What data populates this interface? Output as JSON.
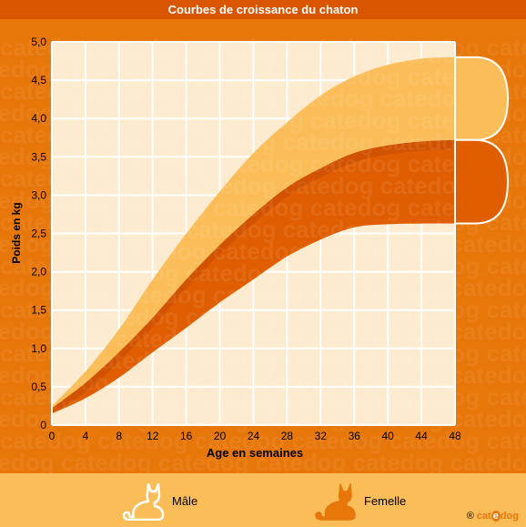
{
  "title": "Courbes de croissance du chaton",
  "legend": {
    "male": "Mâle",
    "female": "Femelle",
    "male_color": "#fbbd58",
    "female_color": "#e8770a",
    "icon": "cat-silhouette-icon"
  },
  "brand": {
    "prefix": "®",
    "part1": "cat",
    "part2": "e",
    "part3": "dog"
  },
  "watermark": "catedog",
  "colors": {
    "background": "#e8770a",
    "plot": "#fdebcf",
    "grid": "#ffffff",
    "male_band": "#fbbd58",
    "female_band": "#e05e00",
    "female_shadow": "#c44800"
  },
  "chart_data": {
    "type": "area",
    "title": "Courbes de croissance du chaton",
    "xlabel": "Age en semaines",
    "ylabel": "Poids en kg",
    "xlim": [
      0,
      48
    ],
    "ylim": [
      0,
      5
    ],
    "grid": true,
    "xticks": [
      0,
      4,
      8,
      12,
      16,
      20,
      24,
      28,
      32,
      36,
      40,
      44,
      48
    ],
    "yticks": [
      "0",
      "0,5",
      "1,0",
      "1,5",
      "2,0",
      "2,5",
      "3,0",
      "3,5",
      "4,0",
      "4,5",
      "5,0"
    ],
    "x": [
      0,
      4,
      8,
      12,
      16,
      20,
      24,
      28,
      32,
      36,
      40,
      44,
      48
    ],
    "series": [
      {
        "name": "Mâle",
        "upper": [
          0.25,
          0.7,
          1.25,
          1.9,
          2.5,
          3.05,
          3.55,
          3.95,
          4.3,
          4.55,
          4.7,
          4.78,
          4.8
        ],
        "lower": [
          0.2,
          0.5,
          0.85,
          1.25,
          1.7,
          2.15,
          2.55,
          2.95,
          3.25,
          3.5,
          3.65,
          3.7,
          3.72
        ]
      },
      {
        "name": "Femelle",
        "upper": [
          0.22,
          0.55,
          0.95,
          1.4,
          1.9,
          2.35,
          2.75,
          3.1,
          3.35,
          3.55,
          3.65,
          3.7,
          3.72
        ],
        "lower": [
          0.15,
          0.35,
          0.62,
          0.95,
          1.27,
          1.6,
          1.9,
          2.2,
          2.42,
          2.58,
          2.62,
          2.63,
          2.63
        ]
      }
    ]
  }
}
